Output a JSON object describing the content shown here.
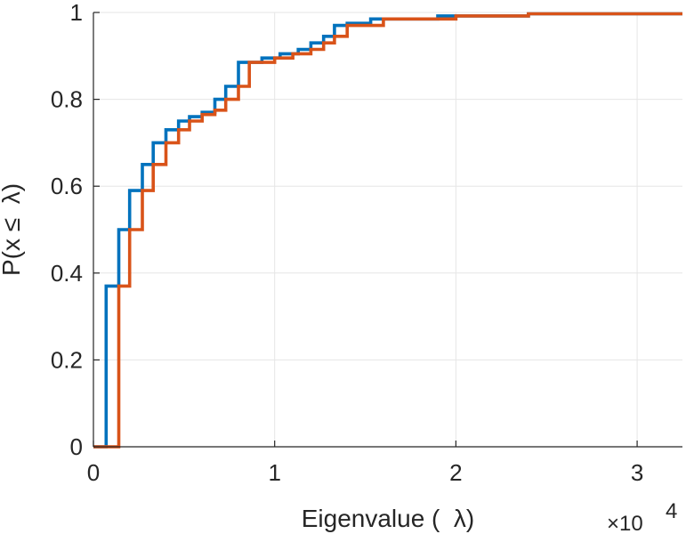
{
  "chart_data": {
    "type": "line",
    "step": true,
    "title": "",
    "xlabel": "Eigenvalue (  λ)",
    "ylabel": "P(x ≤  λ)",
    "x_exponent_label": "×10",
    "x_exponent_power": "4",
    "x_scale": 10000,
    "xlim": [
      0,
      3.25
    ],
    "ylim": [
      0,
      1
    ],
    "x_ticks": [
      0,
      1,
      2,
      3
    ],
    "x_tick_labels": [
      "0",
      "1",
      "2",
      "3"
    ],
    "y_ticks": [
      0,
      0.2,
      0.4,
      0.6,
      0.8,
      1
    ],
    "y_tick_labels": [
      "0",
      "0.2",
      "0.4",
      "0.6",
      "0.8",
      "1"
    ],
    "grid": true,
    "series": [
      {
        "name": "series-1",
        "color": "#0072bd",
        "points": [
          [
            0,
            0
          ],
          [
            0.07,
            0
          ],
          [
            0.07,
            0.37
          ],
          [
            0.14,
            0.37
          ],
          [
            0.14,
            0.5
          ],
          [
            0.2,
            0.5
          ],
          [
            0.2,
            0.59
          ],
          [
            0.27,
            0.59
          ],
          [
            0.27,
            0.65
          ],
          [
            0.33,
            0.65
          ],
          [
            0.33,
            0.7
          ],
          [
            0.4,
            0.7
          ],
          [
            0.4,
            0.73
          ],
          [
            0.47,
            0.73
          ],
          [
            0.47,
            0.75
          ],
          [
            0.53,
            0.75
          ],
          [
            0.53,
            0.76
          ],
          [
            0.6,
            0.76
          ],
          [
            0.6,
            0.77
          ],
          [
            0.67,
            0.77
          ],
          [
            0.67,
            0.8
          ],
          [
            0.73,
            0.8
          ],
          [
            0.73,
            0.83
          ],
          [
            0.8,
            0.83
          ],
          [
            0.8,
            0.885
          ],
          [
            0.93,
            0.885
          ],
          [
            0.93,
            0.895
          ],
          [
            1.03,
            0.895
          ],
          [
            1.03,
            0.905
          ],
          [
            1.13,
            0.905
          ],
          [
            1.13,
            0.915
          ],
          [
            1.2,
            0.915
          ],
          [
            1.2,
            0.93
          ],
          [
            1.27,
            0.93
          ],
          [
            1.27,
            0.945
          ],
          [
            1.33,
            0.945
          ],
          [
            1.33,
            0.97
          ],
          [
            1.4,
            0.97
          ],
          [
            1.4,
            0.975
          ],
          [
            1.53,
            0.975
          ],
          [
            1.53,
            0.985
          ],
          [
            1.9,
            0.985
          ],
          [
            1.9,
            0.992
          ],
          [
            2.4,
            0.992
          ],
          [
            2.4,
            0.997
          ],
          [
            3.25,
            0.997
          ]
        ]
      },
      {
        "name": "series-2",
        "color": "#d95319",
        "points": [
          [
            0,
            0
          ],
          [
            0.14,
            0
          ],
          [
            0.14,
            0.37
          ],
          [
            0.2,
            0.37
          ],
          [
            0.2,
            0.5
          ],
          [
            0.27,
            0.5
          ],
          [
            0.27,
            0.59
          ],
          [
            0.33,
            0.59
          ],
          [
            0.33,
            0.65
          ],
          [
            0.4,
            0.65
          ],
          [
            0.4,
            0.7
          ],
          [
            0.47,
            0.7
          ],
          [
            0.47,
            0.73
          ],
          [
            0.53,
            0.73
          ],
          [
            0.53,
            0.75
          ],
          [
            0.6,
            0.75
          ],
          [
            0.6,
            0.765
          ],
          [
            0.67,
            0.765
          ],
          [
            0.67,
            0.775
          ],
          [
            0.73,
            0.775
          ],
          [
            0.73,
            0.8
          ],
          [
            0.8,
            0.8
          ],
          [
            0.8,
            0.83
          ],
          [
            0.86,
            0.83
          ],
          [
            0.86,
            0.885
          ],
          [
            1.0,
            0.885
          ],
          [
            1.0,
            0.895
          ],
          [
            1.1,
            0.895
          ],
          [
            1.1,
            0.905
          ],
          [
            1.2,
            0.905
          ],
          [
            1.2,
            0.915
          ],
          [
            1.27,
            0.915
          ],
          [
            1.27,
            0.93
          ],
          [
            1.33,
            0.93
          ],
          [
            1.33,
            0.945
          ],
          [
            1.4,
            0.945
          ],
          [
            1.4,
            0.97
          ],
          [
            1.6,
            0.97
          ],
          [
            1.6,
            0.985
          ],
          [
            2.0,
            0.985
          ],
          [
            2.0,
            0.992
          ],
          [
            2.4,
            0.992
          ],
          [
            2.4,
            0.997
          ],
          [
            3.25,
            0.997
          ]
        ]
      }
    ]
  }
}
